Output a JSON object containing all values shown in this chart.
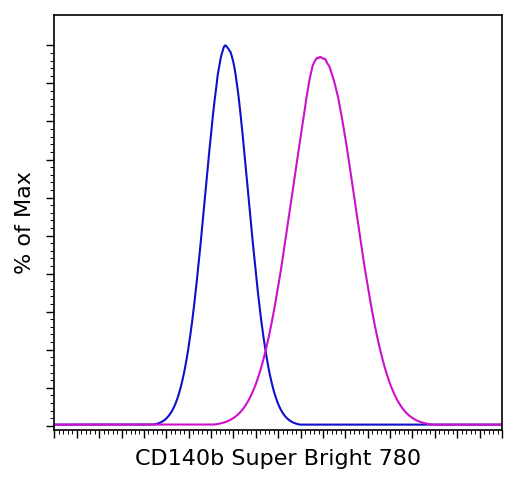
{
  "title": "",
  "xlabel": "CD140b Super Bright 780",
  "ylabel": "% of Max",
  "xlabel_fontsize": 16,
  "ylabel_fontsize": 16,
  "blue_color": "#1010CC",
  "magenta_color": "#CC10CC",
  "bg_color": "#ffffff",
  "linewidth": 1.5,
  "tick_color": "#000000",
  "axis_linewidth": 1.2,
  "xlim": [
    0,
    1
  ],
  "ylim": [
    -0.01,
    1.08
  ],
  "blue_mean": 0.385,
  "blue_std": 0.048,
  "magenta_mean": 0.6,
  "magenta_std": 0.072,
  "n_points": 3000
}
